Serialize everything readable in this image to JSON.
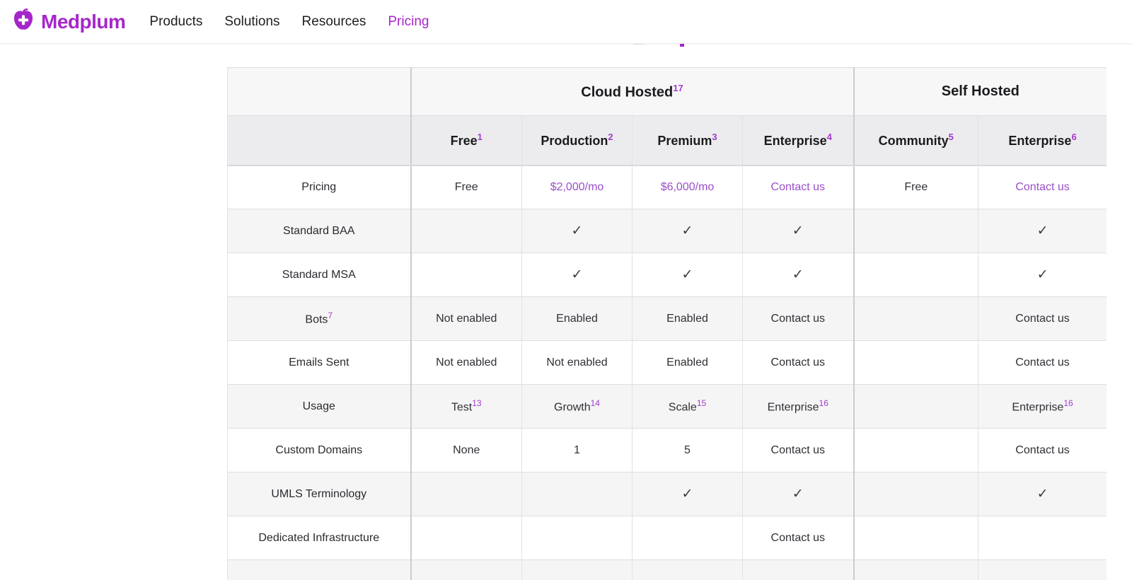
{
  "colors": {
    "brand": "#a527c9",
    "link": "#9a4fc8",
    "sup": "#a23bcd"
  },
  "navbar": {
    "logo": {
      "text": "Medplum"
    },
    "links": [
      {
        "label": "Products",
        "active": false
      },
      {
        "label": "Solutions",
        "active": false
      },
      {
        "label": "Resources",
        "active": false
      },
      {
        "label": "Pricing",
        "active": true
      }
    ]
  },
  "table": {
    "check_glyph": "✓",
    "groups": [
      {
        "label": "Cloud Hosted",
        "sup": "17",
        "span": 4
      },
      {
        "label": "Self Hosted",
        "sup": "",
        "span": 2
      }
    ],
    "columns": [
      {
        "label": "Free",
        "sup": "1"
      },
      {
        "label": "Production",
        "sup": "2"
      },
      {
        "label": "Premium",
        "sup": "3"
      },
      {
        "label": "Enterprise",
        "sup": "4"
      },
      {
        "label": "Community",
        "sup": "5"
      },
      {
        "label": "Enterprise",
        "sup": "6"
      }
    ],
    "rows": [
      {
        "label": {
          "t": "Pricing",
          "sup": ""
        },
        "cells": [
          {
            "kind": "text",
            "t": "Free"
          },
          {
            "kind": "link",
            "t": "$2,000/mo"
          },
          {
            "kind": "link",
            "t": "$6,000/mo"
          },
          {
            "kind": "link",
            "t": "Contact us"
          },
          {
            "kind": "text",
            "t": "Free"
          },
          {
            "kind": "link",
            "t": "Contact us"
          }
        ]
      },
      {
        "label": {
          "t": "Standard BAA",
          "sup": ""
        },
        "cells": [
          {
            "kind": "empty"
          },
          {
            "kind": "check"
          },
          {
            "kind": "check"
          },
          {
            "kind": "check"
          },
          {
            "kind": "empty"
          },
          {
            "kind": "check"
          }
        ]
      },
      {
        "label": {
          "t": "Standard MSA",
          "sup": ""
        },
        "cells": [
          {
            "kind": "empty"
          },
          {
            "kind": "check"
          },
          {
            "kind": "check"
          },
          {
            "kind": "check"
          },
          {
            "kind": "empty"
          },
          {
            "kind": "check"
          }
        ]
      },
      {
        "label": {
          "t": "Bots",
          "sup": "7"
        },
        "cells": [
          {
            "kind": "text",
            "t": "Not enabled"
          },
          {
            "kind": "text",
            "t": "Enabled"
          },
          {
            "kind": "text",
            "t": "Enabled"
          },
          {
            "kind": "text",
            "t": "Contact us"
          },
          {
            "kind": "empty"
          },
          {
            "kind": "text",
            "t": "Contact us"
          }
        ]
      },
      {
        "label": {
          "t": "Emails Sent",
          "sup": ""
        },
        "cells": [
          {
            "kind": "text",
            "t": "Not enabled"
          },
          {
            "kind": "text",
            "t": "Not enabled"
          },
          {
            "kind": "text",
            "t": "Enabled"
          },
          {
            "kind": "text",
            "t": "Contact us"
          },
          {
            "kind": "empty"
          },
          {
            "kind": "text",
            "t": "Contact us"
          }
        ]
      },
      {
        "label": {
          "t": "Usage",
          "sup": ""
        },
        "cells": [
          {
            "kind": "text",
            "t": "Test",
            "sup": "13"
          },
          {
            "kind": "text",
            "t": "Growth",
            "sup": "14"
          },
          {
            "kind": "text",
            "t": "Scale",
            "sup": "15"
          },
          {
            "kind": "text",
            "t": "Enterprise",
            "sup": "16"
          },
          {
            "kind": "empty"
          },
          {
            "kind": "text",
            "t": "Enterprise",
            "sup": "16"
          }
        ]
      },
      {
        "label": {
          "t": "Custom Domains",
          "sup": ""
        },
        "cells": [
          {
            "kind": "text",
            "t": "None"
          },
          {
            "kind": "text",
            "t": "1"
          },
          {
            "kind": "text",
            "t": "5"
          },
          {
            "kind": "text",
            "t": "Contact us"
          },
          {
            "kind": "empty"
          },
          {
            "kind": "text",
            "t": "Contact us"
          }
        ]
      },
      {
        "label": {
          "t": "UMLS Terminology",
          "sup": ""
        },
        "cells": [
          {
            "kind": "empty"
          },
          {
            "kind": "empty"
          },
          {
            "kind": "check"
          },
          {
            "kind": "check"
          },
          {
            "kind": "empty"
          },
          {
            "kind": "check"
          }
        ]
      },
      {
        "label": {
          "t": "Dedicated Infrastructure",
          "sup": ""
        },
        "cells": [
          {
            "kind": "empty"
          },
          {
            "kind": "empty"
          },
          {
            "kind": "empty"
          },
          {
            "kind": "text",
            "t": "Contact us"
          },
          {
            "kind": "empty"
          },
          {
            "kind": "empty"
          }
        ]
      },
      {
        "label": {
          "t": "",
          "sup": ""
        },
        "cells": [
          {
            "kind": "empty"
          },
          {
            "kind": "empty"
          },
          {
            "kind": "empty"
          },
          {
            "kind": "empty"
          },
          {
            "kind": "empty"
          },
          {
            "kind": "empty"
          }
        ]
      }
    ]
  }
}
